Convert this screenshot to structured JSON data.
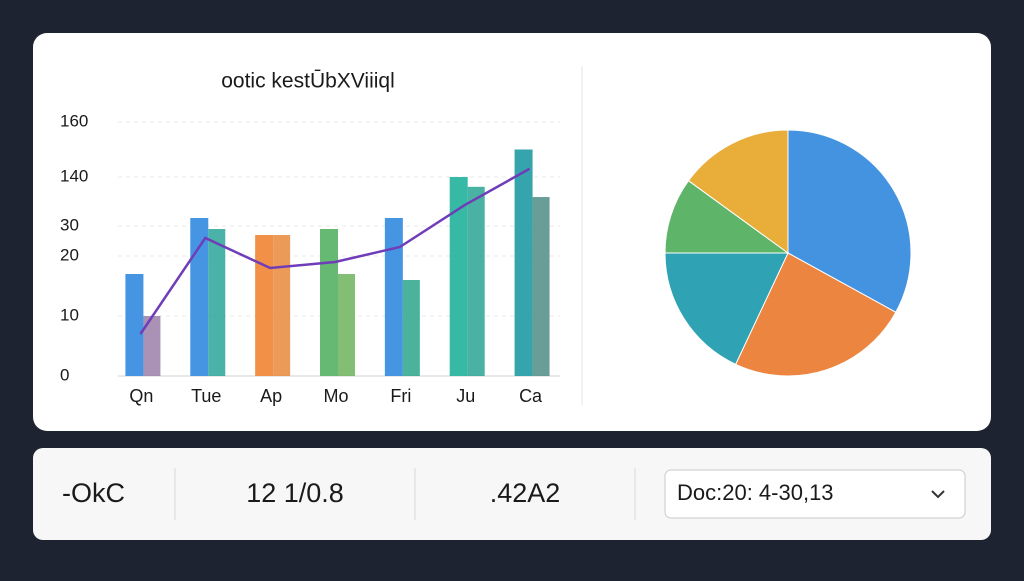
{
  "title": "ootic kestŪbXViiiql",
  "bar_chart": {
    "type": "bar",
    "categories": [
      "Qn",
      "Tue",
      "Ap",
      "Mo",
      "Fri",
      "Ju",
      "Ca"
    ],
    "yticks": [
      0,
      10,
      20,
      30,
      140,
      160
    ],
    "grid": true,
    "series": [
      {
        "colors": [
          "#3b8fe0",
          "#3b8fe0",
          "#f08a3c",
          "#5db56a",
          "#3b8fe0",
          "#2bb5a0",
          "#2a9fa8"
        ],
        "values": [
          17,
          48,
          27,
          29,
          48,
          140,
          150
        ]
      },
      {
        "colors": [
          "#9a7fa8",
          "#2aa59a",
          "#e8893a",
          "#6cb35a",
          "#2ba58a",
          "#2aa594",
          "#4f8c86"
        ],
        "values": [
          10,
          29,
          27,
          17,
          16,
          118,
          95
        ]
      }
    ],
    "line": {
      "type": "line",
      "color": "#6f3db8",
      "values": [
        7,
        26,
        18,
        19,
        23,
        77,
        143
      ]
    }
  },
  "pie_chart": {
    "type": "pie",
    "values": [
      33,
      24,
      18,
      10,
      15
    ],
    "colors": [
      "#4393e0",
      "#ec8540",
      "#2fa2b4",
      "#5eb56a",
      "#e9ad3a"
    ]
  },
  "stats": [
    "-OkC",
    "12 1/0.8",
    ".42A2"
  ],
  "dropdown": "Doc:20: 4-30,13"
}
